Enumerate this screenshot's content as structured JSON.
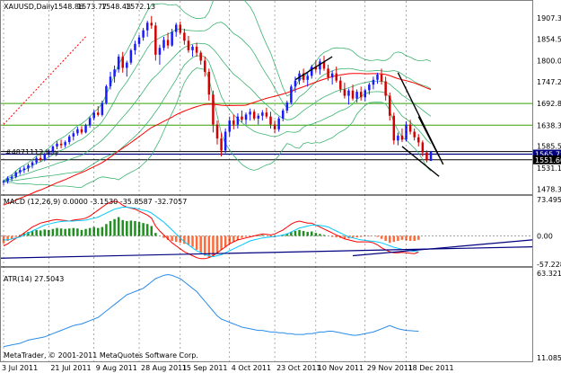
{
  "chart_data": [
    {
      "type": "candlestick",
      "title": "XAUUSD,Daily",
      "ohlc": [
        "1548.86",
        "1573.77",
        "1548.43",
        "1572.13"
      ],
      "order_label": "#4871112 buy",
      "y_ticks": [
        "1907.30",
        "1854.50",
        "1800.05",
        "1747.25",
        "1692.80",
        "1638.35",
        "1585.55",
        "1531.10",
        "1478.30"
      ],
      "price_tags": [
        "1565.72",
        "1551.60"
      ],
      "ylim": [
        1470,
        1925
      ],
      "bars": [
        [
          1495,
          1502,
          1488,
          1498
        ],
        [
          1498,
          1510,
          1492,
          1505
        ],
        [
          1505,
          1515,
          1498,
          1509
        ],
        [
          1509,
          1524,
          1505,
          1520
        ],
        [
          1520,
          1532,
          1514,
          1526
        ],
        [
          1526,
          1536,
          1518,
          1530
        ],
        [
          1530,
          1542,
          1522,
          1538
        ],
        [
          1538,
          1550,
          1530,
          1545
        ],
        [
          1545,
          1560,
          1540,
          1556
        ],
        [
          1556,
          1566,
          1546,
          1551
        ],
        [
          1551,
          1570,
          1548,
          1566
        ],
        [
          1566,
          1578,
          1558,
          1572
        ],
        [
          1572,
          1588,
          1568,
          1585
        ],
        [
          1585,
          1598,
          1578,
          1592
        ],
        [
          1592,
          1602,
          1580,
          1588
        ],
        [
          1588,
          1600,
          1582,
          1596
        ],
        [
          1596,
          1614,
          1590,
          1610
        ],
        [
          1610,
          1624,
          1600,
          1618
        ],
        [
          1618,
          1634,
          1612,
          1628
        ],
        [
          1628,
          1636,
          1615,
          1620
        ],
        [
          1620,
          1642,
          1618,
          1638
        ],
        [
          1638,
          1660,
          1632,
          1656
        ],
        [
          1656,
          1676,
          1650,
          1670
        ],
        [
          1670,
          1686,
          1660,
          1664
        ],
        [
          1664,
          1700,
          1660,
          1694
        ],
        [
          1694,
          1740,
          1690,
          1736
        ],
        [
          1736,
          1772,
          1728,
          1760
        ],
        [
          1760,
          1788,
          1745,
          1778
        ],
        [
          1778,
          1816,
          1770,
          1810
        ],
        [
          1810,
          1822,
          1770,
          1782
        ],
        [
          1782,
          1800,
          1760,
          1795
        ],
        [
          1795,
          1830,
          1790,
          1826
        ],
        [
          1826,
          1850,
          1815,
          1842
        ],
        [
          1842,
          1865,
          1835,
          1858
        ],
        [
          1858,
          1882,
          1850,
          1876
        ],
        [
          1876,
          1900,
          1860,
          1895
        ],
        [
          1895,
          1912,
          1880,
          1888
        ],
        [
          1888,
          1896,
          1800,
          1815
        ],
        [
          1815,
          1840,
          1790,
          1832
        ],
        [
          1832,
          1860,
          1825,
          1852
        ],
        [
          1852,
          1870,
          1830,
          1838
        ],
        [
          1838,
          1880,
          1835,
          1872
        ],
        [
          1872,
          1895,
          1860,
          1890
        ],
        [
          1890,
          1898,
          1865,
          1870
        ],
        [
          1870,
          1880,
          1840,
          1850
        ],
        [
          1850,
          1862,
          1820,
          1826
        ],
        [
          1826,
          1840,
          1810,
          1835
        ],
        [
          1835,
          1845,
          1810,
          1820
        ],
        [
          1820,
          1825,
          1790,
          1800
        ],
        [
          1800,
          1810,
          1760,
          1772
        ],
        [
          1772,
          1780,
          1700,
          1715
        ],
        [
          1715,
          1725,
          1620,
          1640
        ],
        [
          1640,
          1650,
          1590,
          1605
        ],
        [
          1605,
          1620,
          1560,
          1575
        ],
        [
          1575,
          1630,
          1568,
          1622
        ],
        [
          1622,
          1660,
          1610,
          1650
        ],
        [
          1650,
          1665,
          1628,
          1640
        ],
        [
          1640,
          1668,
          1630,
          1660
        ],
        [
          1660,
          1675,
          1645,
          1652
        ],
        [
          1652,
          1670,
          1640,
          1665
        ],
        [
          1665,
          1680,
          1650,
          1672
        ],
        [
          1672,
          1678,
          1650,
          1655
        ],
        [
          1655,
          1668,
          1640,
          1662
        ],
        [
          1662,
          1676,
          1650,
          1670
        ],
        [
          1670,
          1682,
          1655,
          1660
        ],
        [
          1660,
          1672,
          1630,
          1640
        ],
        [
          1640,
          1650,
          1618,
          1628
        ],
        [
          1628,
          1660,
          1622,
          1655
        ],
        [
          1655,
          1680,
          1648,
          1675
        ],
        [
          1675,
          1700,
          1668,
          1695
        ],
        [
          1695,
          1740,
          1690,
          1735
        ],
        [
          1735,
          1760,
          1720,
          1750
        ],
        [
          1750,
          1775,
          1740,
          1768
        ],
        [
          1768,
          1780,
          1745,
          1752
        ],
        [
          1752,
          1770,
          1735,
          1762
        ],
        [
          1762,
          1790,
          1755,
          1785
        ],
        [
          1785,
          1800,
          1770,
          1778
        ],
        [
          1778,
          1805,
          1765,
          1798
        ],
        [
          1798,
          1812,
          1775,
          1780
        ],
        [
          1780,
          1790,
          1750,
          1758
        ],
        [
          1758,
          1775,
          1740,
          1768
        ],
        [
          1768,
          1785,
          1745,
          1750
        ],
        [
          1750,
          1760,
          1720,
          1728
        ],
        [
          1728,
          1745,
          1705,
          1712
        ],
        [
          1712,
          1730,
          1690,
          1725
        ],
        [
          1725,
          1740,
          1700,
          1705
        ],
        [
          1705,
          1728,
          1695,
          1722
        ],
        [
          1722,
          1735,
          1700,
          1708
        ],
        [
          1708,
          1730,
          1698,
          1726
        ],
        [
          1726,
          1745,
          1715,
          1740
        ],
        [
          1740,
          1760,
          1728,
          1752
        ],
        [
          1752,
          1770,
          1742,
          1765
        ],
        [
          1765,
          1780,
          1740,
          1748
        ],
        [
          1748,
          1760,
          1700,
          1712
        ],
        [
          1712,
          1720,
          1650,
          1662
        ],
        [
          1662,
          1670,
          1590,
          1600
        ],
        [
          1600,
          1620,
          1588,
          1612
        ],
        [
          1612,
          1630,
          1596,
          1602
        ],
        [
          1602,
          1648,
          1598,
          1640
        ],
        [
          1640,
          1652,
          1615,
          1622
        ],
        [
          1622,
          1630,
          1600,
          1608
        ],
        [
          1608,
          1616,
          1585,
          1595
        ],
        [
          1595,
          1600,
          1560,
          1570
        ],
        [
          1570,
          1575,
          1545,
          1550
        ],
        [
          1548.86,
          1573.77,
          1548.43,
          1572.13
        ]
      ]
    },
    {
      "type": "line",
      "title": "MACD (12,26,9) 0.0000 -3.1530 -35.8587 -32.7057",
      "y_ticks": [
        "73.4956",
        "0.00",
        "-57.2286"
      ],
      "ylim": [
        -57.2286,
        73.4956
      ],
      "histogram": [
        -15,
        -10,
        -6,
        -2,
        2,
        5,
        8,
        10,
        12,
        11,
        13,
        12,
        14,
        16,
        15,
        14,
        15,
        16,
        15,
        12,
        14,
        16,
        18,
        16,
        18,
        24,
        30,
        34,
        38,
        32,
        30,
        31,
        30,
        28,
        26,
        24,
        20,
        6,
        0,
        -4,
        -8,
        -10,
        -12,
        -14,
        -16,
        -18,
        -22,
        -28,
        -34,
        -40,
        -44,
        -42,
        -34,
        -28,
        -22,
        -16,
        -12,
        -8,
        -4,
        -2,
        -1,
        0,
        1,
        2,
        0,
        -2,
        -3,
        0,
        2,
        5,
        8,
        10,
        12,
        10,
        8,
        9,
        6,
        4,
        2,
        0,
        -2,
        -3,
        -4,
        -6,
        -5,
        -4,
        -3,
        -2,
        -1,
        -1,
        0,
        -2,
        -6,
        -10,
        -14,
        -12,
        -10,
        -8,
        -9,
        -10,
        -10,
        -8
      ],
      "series": [
        {
          "name": "",
          "color": "#ff0000",
          "values": [
            -20,
            -16,
            -10,
            -5,
            0,
            6,
            12,
            18,
            22,
            26,
            28,
            30,
            32,
            33,
            32,
            31,
            30,
            32,
            33,
            34,
            36,
            40,
            46,
            52,
            58,
            64,
            68,
            70,
            68,
            62,
            58,
            56,
            54,
            50,
            46,
            42,
            36,
            20,
            10,
            2,
            -6,
            -14,
            -20,
            -26,
            -32,
            -36,
            -40,
            -44,
            -46,
            -46,
            -44,
            -40,
            -34,
            -28,
            -22,
            -16,
            -12,
            -8,
            -6,
            -4,
            -2,
            0,
            2,
            4,
            3,
            2,
            4,
            8,
            12,
            18,
            24,
            28,
            30,
            28,
            26,
            26,
            22,
            18,
            14,
            10,
            6,
            2,
            -2,
            -6,
            -8,
            -10,
            -12,
            -12,
            -12,
            -12,
            -14,
            -18,
            -24,
            -28,
            -32,
            -34,
            -34,
            -33,
            -34,
            -35,
            -35.86,
            -32.71
          ]
        },
        {
          "name": "",
          "color": "#00c8ff",
          "values": [
            -8,
            -8,
            -6,
            -4,
            -2,
            2,
            6,
            10,
            14,
            18,
            22,
            24,
            26,
            28,
            29,
            30,
            30,
            30,
            31,
            31,
            32,
            34,
            36,
            38,
            42,
            46,
            50,
            54,
            56,
            58,
            58,
            57,
            56,
            54,
            52,
            50,
            46,
            40,
            34,
            28,
            20,
            12,
            4,
            -4,
            -12,
            -18,
            -24,
            -30,
            -34,
            -38,
            -40,
            -42,
            -40,
            -38,
            -34,
            -30,
            -26,
            -22,
            -18,
            -14,
            -10,
            -8,
            -6,
            -4,
            -3,
            -2,
            -1,
            0,
            2,
            4,
            8,
            12,
            16,
            18,
            20,
            22,
            22,
            21,
            20,
            18,
            14,
            10,
            6,
            2,
            -2,
            -4,
            -6,
            -8,
            -9,
            -10,
            -11,
            -12,
            -14,
            -17,
            -20,
            -23,
            -25,
            -27,
            -28,
            -30,
            -31,
            -32
          ]
        }
      ]
    },
    {
      "type": "line",
      "title": "ATR(14) 27.5043",
      "y_ticks": [
        "63.3215",
        "11.0856"
      ],
      "x_ticks": [
        "3 Jul 2011",
        "21 Jul 2011",
        "9 Aug 2011",
        "28 Aug 2011",
        "15 Sep 2011",
        "4 Oct 2011",
        "23 Oct 2011",
        "10 Nov 2011",
        "29 Nov 2011",
        "18 Dec 2011"
      ],
      "copyright": "MetaTrader, © 2001-2011 MetaQuotes Software Corp.",
      "ylim": [
        11.0856,
        63.3215
      ],
      "values": [
        18,
        18.5,
        19,
        19.5,
        20,
        21,
        22,
        22.5,
        23,
        23.5,
        24,
        25,
        26,
        27,
        28,
        29,
        30,
        31,
        31.5,
        32,
        33,
        34,
        35,
        36,
        38,
        40,
        42,
        44,
        46,
        48,
        50,
        51,
        52,
        53,
        54,
        56,
        58,
        60,
        61,
        62,
        62.5,
        62,
        61,
        60,
        58,
        56,
        54,
        52,
        49,
        46,
        43,
        40,
        37,
        35,
        34,
        33,
        32,
        31,
        30,
        29.5,
        29,
        28.5,
        28,
        28,
        27.5,
        27,
        27,
        26.5,
        26.5,
        26,
        26,
        25.5,
        25.5,
        25.5,
        26,
        26,
        26.5,
        27,
        27,
        27.5,
        27.5,
        27,
        26.5,
        26,
        25.5,
        25,
        25,
        25.5,
        26,
        26.5,
        27,
        28,
        29,
        30,
        31,
        30,
        29,
        28.5,
        28,
        27.8,
        27.6,
        27.5
      ]
    }
  ]
}
